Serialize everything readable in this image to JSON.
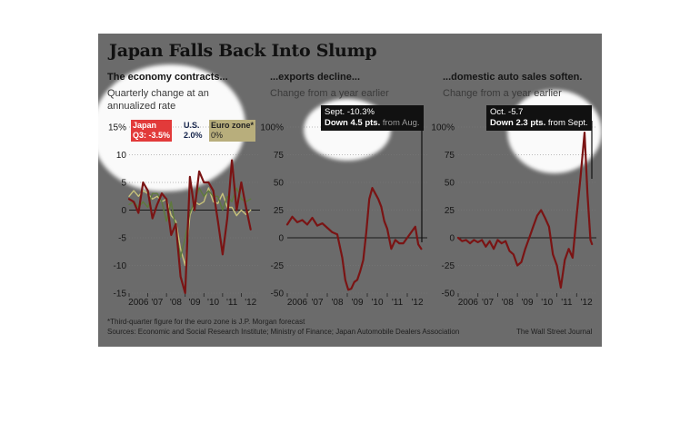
{
  "title": "Japan Falls Back Into Slump",
  "colors": {
    "panel_bg": "#6b6b6b",
    "japan": "#7a1414",
    "japan_badge": "#e23a3a",
    "us": "#5e7a3c",
    "euro": "#c8c27a"
  },
  "panels": [
    {
      "title": "The economy contracts...",
      "subtitle_lines": [
        "Quarterly change at an",
        "annualized rate"
      ]
    },
    {
      "title": "...exports decline...",
      "subtitle_lines": [
        "Change from a year earlier"
      ]
    },
    {
      "title": "...domestic auto sales soften.",
      "subtitle_lines": [
        "Change from a year earlier"
      ]
    }
  ],
  "legend": {
    "japan_label": "Japan",
    "japan_value": "Q3: -3.5%",
    "us_label": "U.S.",
    "us_value": "2.0%",
    "euro_label": "Euro zone*",
    "euro_value": "0%"
  },
  "callouts": {
    "exports": {
      "line1": "Sept. -10.3%",
      "line2_bold": "Down 4.5 pts.",
      "line2_rest": " from Aug."
    },
    "autos": {
      "line1": "Oct. -5.7",
      "line2_bold": "Down 2.3 pts.",
      "line2_rest": " from Sept."
    }
  },
  "footnote": "*Third-quarter figure for the euro zone is J.P. Morgan forecast",
  "sources": "Sources: Economic and Social Research Institute; Ministry of Finance; Japan Automobile Dealers Association",
  "credit": "The Wall Street Journal",
  "chart_data": [
    {
      "type": "line",
      "title": "The economy contracts...",
      "ylabel": "Quarterly change at an annualized rate",
      "ylim": [
        -15,
        15
      ],
      "yticks": [
        15,
        10,
        5,
        0,
        -5,
        -10,
        -15
      ],
      "ytick_labels": [
        "15%",
        "10",
        "5",
        "0",
        "-5",
        "-10",
        "-15"
      ],
      "xlim": [
        2006,
        2013
      ],
      "xtick_labels": [
        "2006",
        "'07",
        "'08",
        "'09",
        "'10",
        "'11",
        "'12"
      ],
      "series": [
        {
          "name": "Euro zone",
          "color": "#c8c27a",
          "x": [
            2006.0,
            2006.25,
            2006.5,
            2006.75,
            2007.0,
            2007.25,
            2007.5,
            2007.75,
            2008.0,
            2008.25,
            2008.5,
            2008.75,
            2009.0,
            2009.25,
            2009.5,
            2009.75,
            2010.0,
            2010.25,
            2010.5,
            2010.75,
            2011.0,
            2011.25,
            2011.5,
            2011.75,
            2012.0,
            2012.25,
            2012.5
          ],
          "y": [
            2.5,
            3.5,
            2.5,
            3.5,
            3,
            2,
            2.5,
            1.5,
            2,
            -1,
            -2,
            -7,
            -10,
            -1,
            1.5,
            1,
            1.5,
            4,
            1.5,
            1.2,
            3,
            0.5,
            0.5,
            -1,
            0,
            -0.8,
            0
          ]
        },
        {
          "name": "U.S.",
          "color": "#5e7a3c",
          "x": [
            2006.0,
            2006.25,
            2006.5,
            2006.75,
            2007.0,
            2007.25,
            2007.5,
            2007.75,
            2008.0,
            2008.25,
            2008.5,
            2008.75,
            2009.0,
            2009.25,
            2009.5,
            2009.75,
            2010.0,
            2010.25,
            2010.5,
            2010.75,
            2011.0,
            2011.25,
            2011.5,
            2011.75,
            2012.0,
            2012.25,
            2012.5
          ],
          "y": [
            1,
            1.5,
            0.5,
            1.5,
            0.5,
            3,
            3,
            1.5,
            -2,
            1.5,
            -3.5,
            -8.5,
            -5,
            -0.5,
            1.5,
            4,
            2.5,
            3.5,
            2.5,
            2.5,
            0,
            2.5,
            1.5,
            4,
            2,
            1.5,
            2
          ]
        },
        {
          "name": "Japan",
          "color": "#7a1414",
          "x": [
            2006.0,
            2006.25,
            2006.5,
            2006.75,
            2007.0,
            2007.25,
            2007.5,
            2007.75,
            2008.0,
            2008.25,
            2008.5,
            2008.75,
            2009.0,
            2009.25,
            2009.5,
            2009.75,
            2010.0,
            2010.25,
            2010.5,
            2010.75,
            2011.0,
            2011.25,
            2011.5,
            2011.75,
            2012.0,
            2012.25,
            2012.5
          ],
          "y": [
            2,
            1.5,
            -0.5,
            5,
            3.5,
            -1.5,
            1,
            3,
            2,
            -4.5,
            -2.5,
            -12,
            -15,
            6,
            0,
            7,
            5,
            5,
            3.5,
            -2,
            -8,
            -1.5,
            9,
            0,
            5,
            0.5,
            -3.5
          ]
        }
      ]
    },
    {
      "type": "line",
      "title": "...exports decline...",
      "ylabel": "Change from a year earlier",
      "ylim": [
        -50,
        100
      ],
      "yticks": [
        100,
        75,
        50,
        25,
        0,
        -25,
        -50
      ],
      "ytick_labels": [
        "100%",
        "75",
        "50",
        "25",
        "0",
        "-25",
        "-50"
      ],
      "xlim": [
        2006,
        2013
      ],
      "xtick_labels": [
        "2006",
        "'07",
        "'08",
        "'09",
        "'10",
        "'11",
        "'12"
      ],
      "series": [
        {
          "name": "Exports",
          "color": "#7a1414",
          "x": [
            2006.0,
            2006.25,
            2006.5,
            2006.75,
            2007.0,
            2007.25,
            2007.5,
            2007.75,
            2008.0,
            2008.25,
            2008.5,
            2008.75,
            2008.9,
            2009.05,
            2009.2,
            2009.35,
            2009.5,
            2009.65,
            2009.8,
            2009.95,
            2010.1,
            2010.25,
            2010.4,
            2010.55,
            2010.7,
            2010.85,
            2011.0,
            2011.2,
            2011.4,
            2011.6,
            2011.8,
            2012.0,
            2012.2,
            2012.4,
            2012.55,
            2012.7
          ],
          "y": [
            12,
            19,
            14,
            16,
            12,
            18,
            11,
            13,
            9,
            5,
            3,
            -18,
            -38,
            -47,
            -46,
            -40,
            -38,
            -30,
            -20,
            5,
            35,
            45,
            40,
            35,
            28,
            15,
            8,
            -10,
            -2,
            -5,
            -5,
            0,
            5,
            10,
            -6,
            -10
          ]
        }
      ]
    },
    {
      "type": "line",
      "title": "...domestic auto sales soften.",
      "ylabel": "Change from a year earlier",
      "ylim": [
        -50,
        100
      ],
      "yticks": [
        100,
        75,
        50,
        25,
        0,
        -25,
        -50
      ],
      "ytick_labels": [
        "100%",
        "75",
        "50",
        "25",
        "0",
        "-25",
        "-50"
      ],
      "xlim": [
        2006,
        2013
      ],
      "xtick_labels": [
        "2006",
        "'07",
        "'08",
        "'09",
        "'10",
        "'11",
        "'12"
      ],
      "series": [
        {
          "name": "Auto sales",
          "color": "#7a1414",
          "x": [
            2006.0,
            2006.2,
            2006.4,
            2006.6,
            2006.8,
            2007.0,
            2007.2,
            2007.4,
            2007.6,
            2007.8,
            2008.0,
            2008.2,
            2008.4,
            2008.6,
            2008.8,
            2009.0,
            2009.2,
            2009.4,
            2009.6,
            2009.8,
            2010.0,
            2010.2,
            2010.4,
            2010.6,
            2010.8,
            2011.0,
            2011.1,
            2011.2,
            2011.4,
            2011.6,
            2011.8,
            2012.0,
            2012.2,
            2012.4,
            2012.55,
            2012.7,
            2012.78
          ],
          "y": [
            0,
            -3,
            -2,
            -5,
            -2,
            -4,
            -2,
            -8,
            -3,
            -10,
            -2,
            -5,
            -3,
            -12,
            -15,
            -25,
            -22,
            -10,
            0,
            10,
            20,
            25,
            18,
            10,
            -15,
            -25,
            -35,
            -45,
            -20,
            -10,
            -18,
            20,
            55,
            95,
            40,
            -2,
            -5.7
          ]
        }
      ]
    }
  ]
}
